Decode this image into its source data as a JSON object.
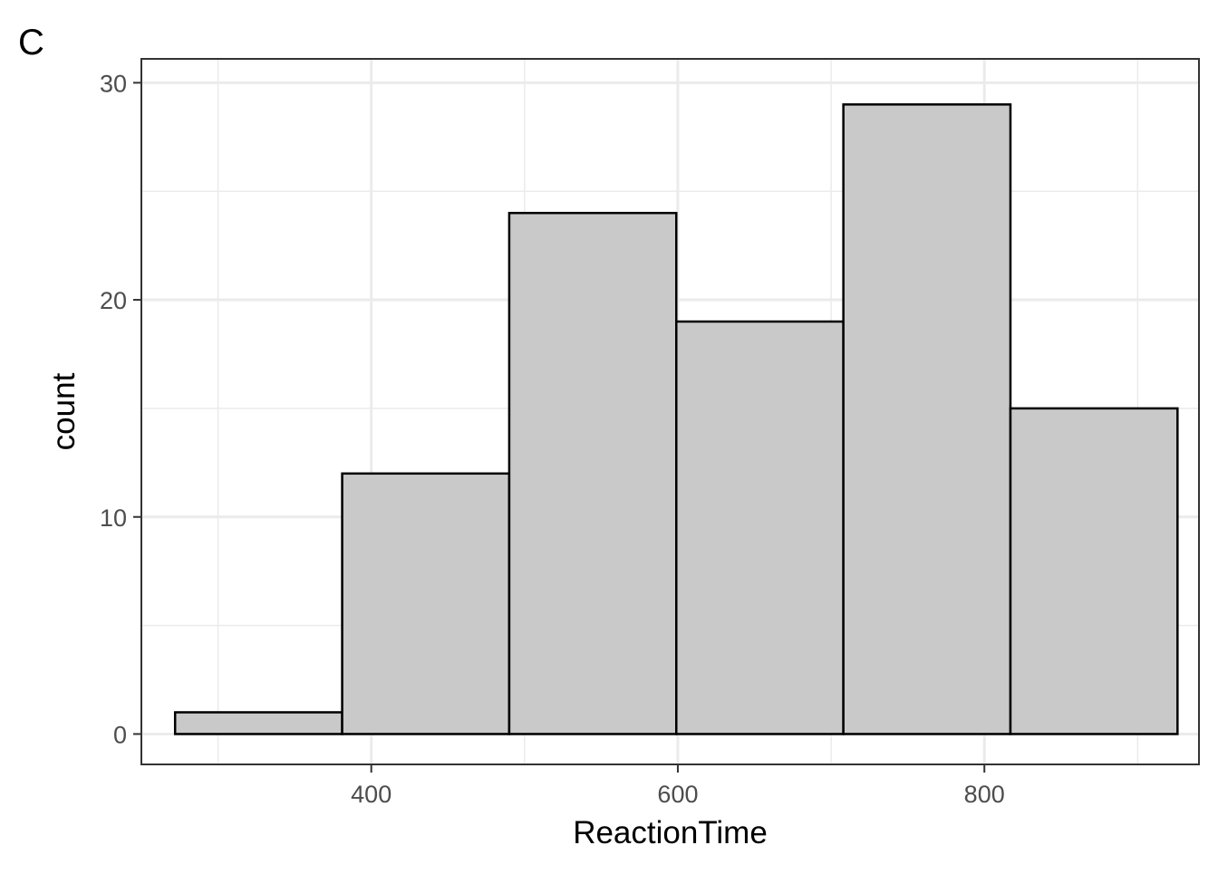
{
  "panel_label": "C",
  "chart_data": {
    "type": "bar",
    "histogram": true,
    "xlabel": "ReactionTime",
    "ylabel": "count",
    "xlim": [
      250,
      940
    ],
    "ylim": [
      -1.4,
      31.1
    ],
    "x_ticks": [
      400,
      600,
      800
    ],
    "x_minor_ticks": [
      300,
      500,
      700,
      900
    ],
    "y_ticks": [
      0,
      10,
      20,
      30
    ],
    "y_minor_ticks": [
      5,
      15,
      25
    ],
    "grid": true,
    "bins": [
      {
        "x_start": 272,
        "x_end": 381,
        "count": 1
      },
      {
        "x_start": 381,
        "x_end": 490,
        "count": 12
      },
      {
        "x_start": 490,
        "x_end": 599,
        "count": 24
      },
      {
        "x_start": 599,
        "x_end": 708,
        "count": 19
      },
      {
        "x_start": 708,
        "x_end": 817,
        "count": 29
      },
      {
        "x_start": 817,
        "x_end": 926,
        "count": 15
      }
    ],
    "colors": {
      "bar_fill": "#c9c9c9",
      "bar_outline": "#000000",
      "grid": "#ebebeb",
      "panel_border": "#333333",
      "tick_label": "#4d4d4d"
    }
  }
}
